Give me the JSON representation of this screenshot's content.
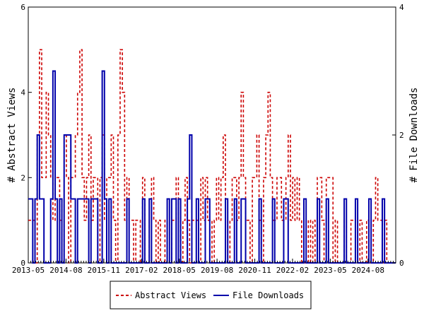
{
  "chart_data": {
    "type": "line",
    "title": "",
    "xlabel": "",
    "ylabel_left": "# Abstract Views",
    "ylabel_right": "# File Downloads",
    "x_ticks": [
      "2013-05",
      "2014-08",
      "2015-11",
      "2017-02",
      "2018-05",
      "2019-08",
      "2020-11",
      "2022-02",
      "2023-05",
      "2024-08"
    ],
    "x_range": [
      "2013-05",
      "2025-07"
    ],
    "ylim_left": [
      0,
      6
    ],
    "ylim_right": [
      0,
      4
    ],
    "y_ticks_left": [
      "0",
      "2",
      "4",
      "6"
    ],
    "y_ticks_right": [
      "0",
      "2",
      "4"
    ],
    "grid": false,
    "legend_placement": "bottom-center",
    "series": [
      {
        "name": "Abstract Views",
        "axis": "left",
        "color": "#cc0000",
        "style": "dashed",
        "values": [
          1,
          1,
          1,
          0,
          3,
          5,
          2,
          2,
          4,
          3,
          2,
          1,
          2,
          2,
          1,
          0,
          3,
          2,
          0,
          2,
          2,
          3,
          4,
          5,
          2,
          1,
          2,
          3,
          1,
          2,
          2,
          0,
          2,
          3,
          1,
          2,
          2,
          3,
          1,
          0,
          3,
          5,
          4,
          1,
          2,
          1,
          1,
          0,
          1,
          1,
          0,
          2,
          0,
          0,
          1,
          2,
          1,
          0,
          1,
          0,
          0,
          1,
          0,
          0,
          1,
          1,
          2,
          1,
          0,
          1,
          2,
          1,
          0,
          1,
          1,
          1,
          0,
          2,
          1,
          2,
          1,
          1,
          0,
          1,
          2,
          1,
          2,
          3,
          1,
          0,
          1,
          2,
          2,
          1,
          2,
          4,
          2,
          1,
          1,
          0,
          2,
          2,
          3,
          1,
          0,
          2,
          3,
          4,
          2,
          1,
          1,
          2,
          2,
          1,
          1,
          2,
          3,
          1,
          2,
          1,
          2,
          1,
          0,
          0,
          0,
          1,
          0,
          1,
          0,
          2,
          2,
          1,
          0,
          2,
          2,
          2,
          0,
          1,
          0,
          0,
          0,
          1,
          0,
          0,
          1,
          1,
          0,
          0,
          1,
          0,
          0,
          1,
          0,
          0,
          1,
          2,
          1,
          1,
          0,
          1,
          0,
          0,
          0,
          0
        ]
      },
      {
        "name": "File Downloads",
        "axis": "right",
        "color": "#0000aa",
        "style": "solid",
        "values": [
          1,
          1,
          0,
          1,
          2,
          1,
          1,
          0,
          0,
          0,
          1,
          3,
          1,
          0,
          1,
          0,
          2,
          2,
          2,
          1,
          1,
          0,
          1,
          1,
          1,
          1,
          1,
          0,
          1,
          1,
          1,
          0,
          0,
          3,
          1,
          0,
          1,
          0,
          0,
          0,
          0,
          0,
          0,
          0,
          1,
          0,
          0,
          0,
          0,
          0,
          0,
          1,
          0,
          0,
          1,
          0,
          0,
          0,
          0,
          0,
          0,
          0,
          1,
          0,
          1,
          1,
          0,
          1,
          0,
          0,
          0,
          1,
          2,
          0,
          0,
          1,
          0,
          0,
          0,
          1,
          1,
          0,
          0,
          0,
          0,
          0,
          0,
          0,
          1,
          0,
          0,
          0,
          1,
          0,
          0,
          1,
          1,
          0,
          0,
          0,
          0,
          0,
          0,
          1,
          0,
          0,
          0,
          0,
          0,
          1,
          0,
          0,
          0,
          0,
          1,
          1,
          0,
          0,
          0,
          0,
          0,
          0,
          0,
          1,
          0,
          0,
          0,
          0,
          0,
          1,
          0,
          0,
          0,
          1,
          0,
          0,
          0,
          0,
          0,
          0,
          0,
          1,
          0,
          0,
          0,
          0,
          1,
          0,
          0,
          0,
          0,
          0,
          1,
          0,
          0,
          0,
          0,
          0,
          1,
          0,
          0,
          0,
          0,
          0
        ]
      }
    ]
  }
}
